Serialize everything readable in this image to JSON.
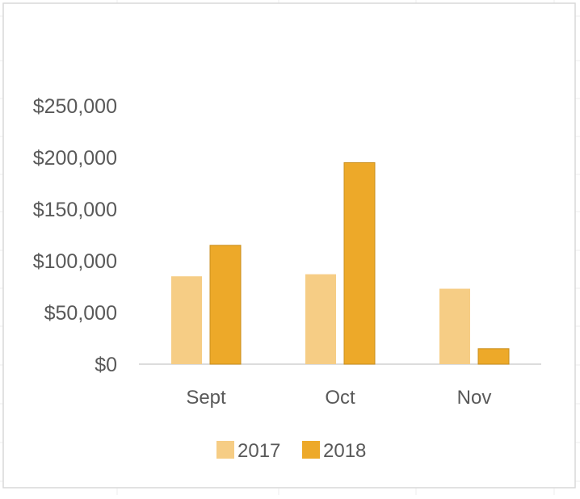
{
  "chart_data": {
    "type": "bar",
    "categories": [
      "Sept",
      "Oct",
      "Nov"
    ],
    "series": [
      {
        "name": "2017",
        "values": [
          85000,
          87000,
          73000
        ],
        "color": "#F6CD85"
      },
      {
        "name": "2018",
        "values": [
          115000,
          195000,
          15000
        ],
        "color": "#EDA929"
      }
    ],
    "yticks": [
      "$0",
      "$50,000",
      "$100,000",
      "$150,000",
      "$200,000",
      "$250,000"
    ],
    "ytick_values": [
      0,
      50000,
      100000,
      150000,
      200000,
      250000
    ],
    "ylim": [
      0,
      250000
    ],
    "legend_position": "bottom",
    "grid": false,
    "title": "",
    "xlabel": "",
    "ylabel": ""
  }
}
